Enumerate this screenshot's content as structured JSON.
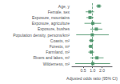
{
  "chart_data": {
    "type": "forest",
    "categories": [
      "Age, y",
      "Female, sex",
      "Exposure, mountains",
      "Exposure, agriculture",
      "Exposure, bushes",
      "Population density, persons/km²",
      "Coasts, m²",
      "Forests, m²",
      "Farmland, m²",
      "Rivers and lakes, m²",
      "Wilderness, m²"
    ],
    "values": [
      1.58,
      0.82,
      0.83,
      1.02,
      1.32,
      0.98,
      0.92,
      0.87,
      0.91,
      1.38,
      1.02
    ],
    "ci_low": [
      1.3,
      0.6,
      0.63,
      0.55,
      0.85,
      0.3,
      0.77,
      0.74,
      0.73,
      0.85,
      0.28
    ],
    "ci_high": [
      1.92,
      1.12,
      1.08,
      1.88,
      2.05,
      3.3,
      1.1,
      1.02,
      1.13,
      2.25,
      3.65
    ],
    "ref_line": 1.0,
    "color": "#3d8b5e",
    "xlabel": "Adjusted odds ratio (95% CI)",
    "xlim": [
      0.22,
      4.2
    ],
    "xticks": [
      0.5,
      {
        "value": 1.0,
        "label": "1.0"
      },
      {
        "value": 2.0,
        "label": "2.0"
      }
    ],
    "log": "x",
    "grid": false
  }
}
